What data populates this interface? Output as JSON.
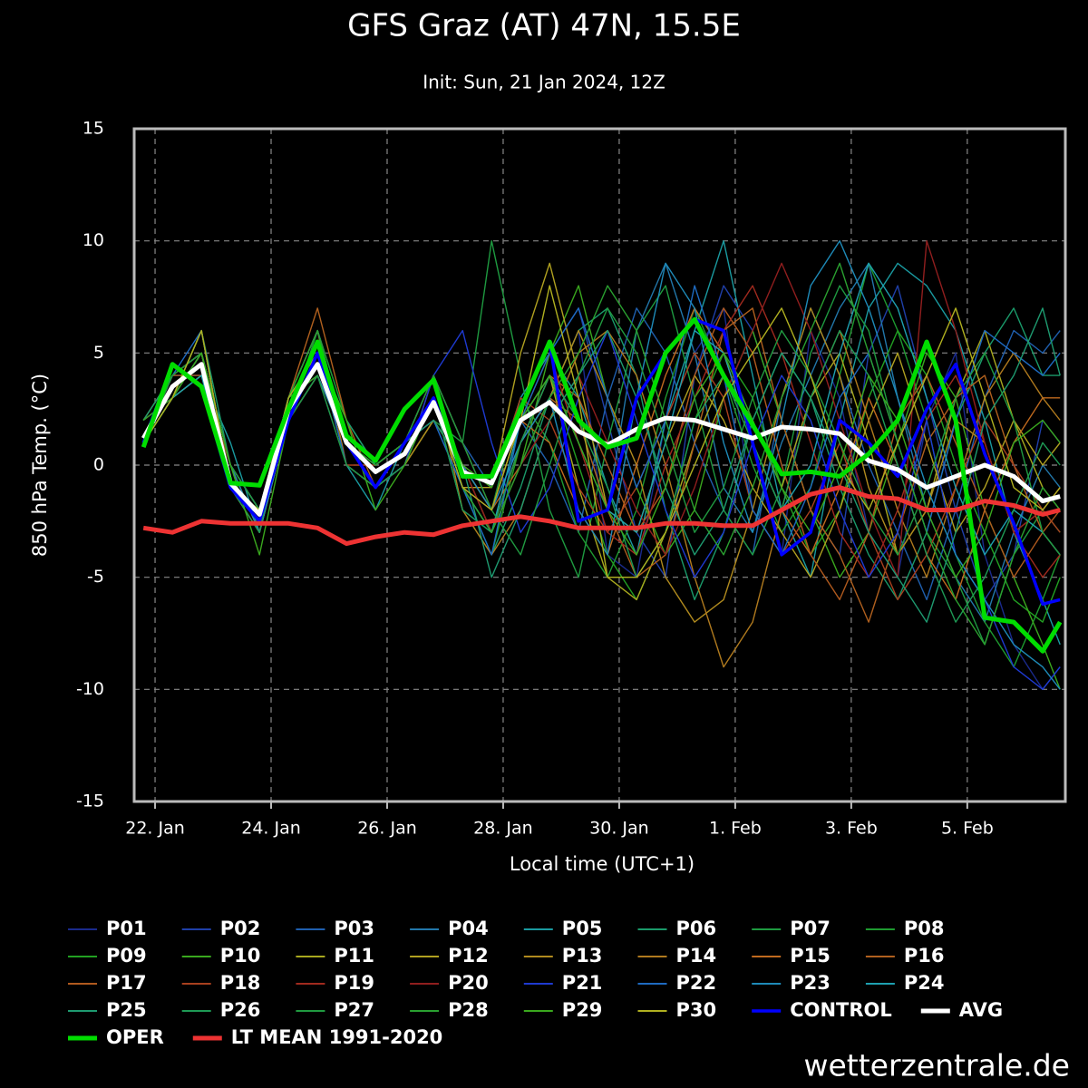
{
  "chart_data": {
    "type": "line",
    "title": "GFS Graz (AT) 47N, 15.5E",
    "subtitle": "Init: Sun, 21 Jan 2024, 12Z",
    "x_label": "Local time (UTC+1)",
    "y_label": "850 hPa Temp. (°C)",
    "watermark": "wetterzentrale.de",
    "grid": true,
    "xlim": [
      21.64,
      37.69
    ],
    "xticks": [
      {
        "value": 22,
        "label": "22. Jan"
      },
      {
        "value": 24,
        "label": "24. Jan"
      },
      {
        "value": 26,
        "label": "26. Jan"
      },
      {
        "value": 28,
        "label": "28. Jan"
      },
      {
        "value": 30,
        "label": "30. Jan"
      },
      {
        "value": 32,
        "label": "1. Feb"
      },
      {
        "value": 34,
        "label": "3. Feb"
      },
      {
        "value": 36,
        "label": "5. Feb"
      }
    ],
    "ylim": [
      -15,
      15
    ],
    "yticks": [
      -15,
      -10,
      -5,
      0,
      5,
      10,
      15
    ],
    "x": [
      21.8,
      22.3,
      22.8,
      23.3,
      23.8,
      24.3,
      24.8,
      25.3,
      25.8,
      26.3,
      26.8,
      27.3,
      27.8,
      28.3,
      28.8,
      29.3,
      29.8,
      30.3,
      30.8,
      31.3,
      31.8,
      32.3,
      32.8,
      33.3,
      33.8,
      34.3,
      34.8,
      35.3,
      35.8,
      36.3,
      36.8,
      37.3,
      37.6
    ],
    "series": [
      {
        "name": "P01",
        "color": "#1a2a8c",
        "values": [
          1,
          3,
          5,
          0,
          -2,
          3,
          5,
          1,
          -1,
          0,
          3,
          0,
          -2,
          1,
          3,
          6,
          -4,
          -5,
          2,
          5,
          7,
          -2,
          -4,
          6,
          3,
          -3,
          -5,
          2,
          5,
          -4,
          -8,
          -10,
          -9
        ]
      },
      {
        "name": "P02",
        "color": "#1f3fa8",
        "values": [
          2,
          4,
          4,
          -1,
          -3,
          2,
          4,
          0,
          -1,
          1,
          2,
          -1,
          -2,
          3,
          5,
          7,
          2,
          -3,
          -5,
          4,
          8,
          6,
          2,
          -2,
          -4,
          5,
          8,
          3,
          -2,
          -6,
          -4,
          2,
          1
        ]
      },
      {
        "name": "P03",
        "color": "#1f5fae",
        "values": [
          1,
          3,
          5,
          0,
          -2,
          2,
          6,
          2,
          0,
          1,
          4,
          1,
          -1,
          2,
          0,
          -3,
          3,
          7,
          5,
          1,
          -2,
          -4,
          3,
          7,
          4,
          0,
          -3,
          -6,
          -2,
          3,
          6,
          5,
          6
        ]
      },
      {
        "name": "P04",
        "color": "#2277aa",
        "values": [
          1,
          4,
          5,
          -1,
          -2,
          3,
          4,
          1,
          -1,
          0,
          3,
          -2,
          -3,
          1,
          4,
          2,
          -2,
          6,
          9,
          5,
          -1,
          -3,
          1,
          4,
          7,
          9,
          3,
          -2,
          -5,
          -7,
          -3,
          0,
          -1
        ]
      },
      {
        "name": "P05",
        "color": "#1a9aa0",
        "values": [
          1,
          3,
          4,
          1,
          -3,
          2,
          5,
          0,
          -2,
          1,
          2,
          0,
          -1,
          3,
          5,
          3,
          -1,
          -4,
          2,
          6,
          10,
          4,
          -2,
          -5,
          2,
          7,
          9,
          8,
          6,
          2,
          -3,
          -6,
          -8
        ]
      },
      {
        "name": "P06",
        "color": "#1a9a6a",
        "values": [
          1,
          3,
          6,
          0,
          -2,
          3,
          5,
          1,
          0,
          1,
          3,
          -1,
          -4,
          -1,
          3,
          6,
          7,
          4,
          -2,
          -6,
          -3,
          2,
          5,
          3,
          -1,
          -4,
          -6,
          -3,
          2,
          5,
          7,
          4,
          4
        ]
      },
      {
        "name": "P07",
        "color": "#1e9a40",
        "values": [
          2,
          4,
          5,
          -1,
          -3,
          3,
          5,
          1,
          -1,
          0,
          2,
          1,
          10,
          4,
          -2,
          -5,
          1,
          6,
          8,
          3,
          -2,
          -4,
          -1,
          5,
          8,
          6,
          1,
          -3,
          -5,
          -8,
          -4,
          -2,
          -3
        ]
      },
      {
        "name": "P08",
        "color": "#1e9a30",
        "values": [
          1,
          3,
          6,
          -1,
          -2,
          2,
          6,
          2,
          0,
          1,
          3,
          0,
          -2,
          3,
          1,
          -3,
          -5,
          -2,
          3,
          7,
          4,
          0,
          -3,
          -1,
          4,
          9,
          6,
          2,
          -4,
          -7,
          -9,
          -6,
          -4
        ]
      },
      {
        "name": "P09",
        "color": "#22a022",
        "values": [
          1,
          3,
          5,
          0,
          -3,
          2,
          5,
          1,
          -1,
          0,
          3,
          -2,
          -4,
          1,
          4,
          0,
          -4,
          -6,
          -3,
          2,
          5,
          3,
          -1,
          -4,
          -2,
          3,
          6,
          4,
          0,
          -3,
          -6,
          -7,
          -5
        ]
      },
      {
        "name": "P10",
        "color": "#3aa81e",
        "values": [
          2,
          4,
          5,
          -1,
          -2,
          3,
          4,
          1,
          0,
          1,
          3,
          -1,
          -3,
          0,
          5,
          8,
          3,
          -1,
          -4,
          -2,
          3,
          6,
          2,
          -2,
          -5,
          -3,
          1,
          5,
          3,
          -2,
          -5,
          -8,
          -10
        ]
      },
      {
        "name": "P11",
        "color": "#a8a81e",
        "values": [
          1,
          3,
          4,
          0,
          -2,
          2,
          5,
          0,
          -1,
          0,
          2,
          0,
          -2,
          2,
          4,
          -1,
          -5,
          -6,
          -3,
          1,
          4,
          2,
          -1,
          3,
          5,
          1,
          -4,
          -2,
          3,
          6,
          2,
          -1,
          -2
        ]
      },
      {
        "name": "P12",
        "color": "#b0a020",
        "values": [
          1,
          4,
          5,
          -1,
          -3,
          3,
          6,
          1,
          0,
          1,
          3,
          -1,
          -1,
          5,
          9,
          4,
          -2,
          -3,
          1,
          4,
          2,
          -1,
          -3,
          -5,
          -2,
          2,
          5,
          1,
          -3,
          -1,
          2,
          0,
          1
        ]
      },
      {
        "name": "P13",
        "color": "#b08a1e",
        "values": [
          1,
          3,
          5,
          0,
          -2,
          2,
          4,
          1,
          -1,
          0,
          2,
          0,
          -3,
          1,
          3,
          6,
          3,
          0,
          -5,
          -7,
          -6,
          -2,
          3,
          7,
          4,
          -1,
          -4,
          -2,
          2,
          1,
          -3,
          -2,
          -1
        ]
      },
      {
        "name": "P14",
        "color": "#b07a1e",
        "values": [
          2,
          3,
          6,
          -1,
          -2,
          3,
          6,
          0,
          -1,
          1,
          4,
          -2,
          -4,
          -2,
          2,
          5,
          6,
          4,
          0,
          -5,
          -9,
          -7,
          -2,
          3,
          6,
          2,
          -2,
          -5,
          -1,
          3,
          5,
          3,
          2
        ]
      },
      {
        "name": "P15",
        "color": "#c06a1e",
        "values": [
          1,
          4,
          5,
          0,
          -3,
          2,
          5,
          1,
          0,
          1,
          3,
          0,
          -2,
          2,
          1,
          -2,
          -4,
          0,
          4,
          7,
          5,
          1,
          -2,
          -4,
          -1,
          3,
          0,
          -4,
          -6,
          -2,
          1,
          3,
          3
        ]
      },
      {
        "name": "P16",
        "color": "#b0601e",
        "values": [
          1,
          3,
          5,
          -1,
          -2,
          3,
          7,
          2,
          -1,
          0,
          4,
          1,
          -2,
          0,
          3,
          2,
          -2,
          -5,
          -4,
          1,
          6,
          7,
          2,
          -2,
          -4,
          -7,
          -3,
          1,
          3,
          4,
          0,
          -3,
          -4
        ]
      },
      {
        "name": "P17",
        "color": "#b05a1e",
        "values": [
          2,
          4,
          4,
          0,
          -3,
          2,
          5,
          1,
          -1,
          1,
          3,
          -1,
          -3,
          1,
          4,
          3,
          0,
          -3,
          -1,
          4,
          7,
          5,
          0,
          -4,
          -6,
          -3,
          2,
          4,
          1,
          -2,
          -5,
          -3,
          -2
        ]
      },
      {
        "name": "P18",
        "color": "#a8401e",
        "values": [
          1,
          3,
          6,
          -1,
          -2,
          3,
          5,
          0,
          0,
          1,
          2,
          0,
          -1,
          3,
          2,
          -1,
          -3,
          -1,
          2,
          5,
          3,
          -2,
          -4,
          -2,
          1,
          -3,
          -6,
          -4,
          -1,
          2,
          0,
          -2,
          -3
        ]
      },
      {
        "name": "P19",
        "color": "#a02a1e",
        "values": [
          1,
          4,
          5,
          0,
          -2,
          2,
          4,
          1,
          -1,
          0,
          3,
          -1,
          -2,
          2,
          5,
          1,
          -3,
          -4,
          0,
          3,
          6,
          8,
          5,
          1,
          -3,
          -5,
          -2,
          2,
          4,
          1,
          -3,
          -5,
          -4
        ]
      },
      {
        "name": "P20",
        "color": "#901e1e",
        "values": [
          1,
          3,
          5,
          -1,
          -3,
          3,
          6,
          1,
          0,
          1,
          3,
          0,
          -3,
          0,
          2,
          4,
          1,
          -2,
          -4,
          -1,
          3,
          6,
          9,
          6,
          2,
          -2,
          -5,
          10,
          6,
          1,
          -3,
          -2,
          -1
        ]
      },
      {
        "name": "P21",
        "color": "#1e3ad0",
        "values": [
          2,
          3,
          5,
          0,
          -2,
          2,
          5,
          1,
          -1,
          0,
          4,
          6,
          1,
          -3,
          -1,
          3,
          6,
          2,
          -2,
          -5,
          -3,
          1,
          4,
          2,
          -2,
          -5,
          -3,
          2,
          -4,
          -6,
          -9,
          -10,
          -9
        ]
      },
      {
        "name": "P22",
        "color": "#1e6ac0",
        "values": [
          1,
          4,
          6,
          -1,
          -2,
          3,
          5,
          0,
          -1,
          1,
          2,
          -1,
          -4,
          2,
          5,
          7,
          3,
          -1,
          2,
          8,
          4,
          -2,
          -4,
          -1,
          3,
          5,
          1,
          -3,
          2,
          6,
          5,
          4,
          5
        ]
      },
      {
        "name": "P23",
        "color": "#1e8ab8",
        "values": [
          1,
          3,
          5,
          0,
          -3,
          2,
          4,
          1,
          0,
          1,
          3,
          0,
          -2,
          1,
          3,
          -2,
          -4,
          3,
          9,
          7,
          1,
          -3,
          2,
          8,
          10,
          7,
          3,
          -1,
          -4,
          -6,
          -8,
          -9,
          -10
        ]
      },
      {
        "name": "P24",
        "color": "#1ea0b0",
        "values": [
          1,
          3,
          4,
          -1,
          -2,
          3,
          6,
          1,
          -1,
          0,
          3,
          -1,
          -3,
          2,
          4,
          1,
          -2,
          -3,
          1,
          6,
          5,
          1,
          -2,
          0,
          5,
          9,
          7,
          3,
          -1,
          -4,
          -2,
          -3,
          -4
        ]
      },
      {
        "name": "P25",
        "color": "#1e9a70",
        "values": [
          2,
          4,
          5,
          0,
          -2,
          2,
          5,
          2,
          0,
          1,
          2,
          0,
          -5,
          -2,
          2,
          4,
          6,
          3,
          -1,
          -4,
          -2,
          2,
          5,
          3,
          0,
          -3,
          -5,
          -7,
          -3,
          2,
          4,
          7,
          4
        ]
      },
      {
        "name": "P26",
        "color": "#1e9a55",
        "values": [
          1,
          3,
          6,
          -1,
          -3,
          3,
          5,
          1,
          -1,
          0,
          3,
          -2,
          -3,
          1,
          4,
          2,
          -1,
          -5,
          -3,
          2,
          4,
          1,
          -2,
          3,
          6,
          4,
          0,
          -4,
          -7,
          -5,
          -2,
          1,
          0
        ]
      },
      {
        "name": "P27",
        "color": "#209a40",
        "values": [
          1,
          4,
          5,
          0,
          -2,
          2,
          4,
          0,
          -1,
          1,
          4,
          1,
          -2,
          -4,
          0,
          4,
          7,
          5,
          1,
          -3,
          -1,
          3,
          6,
          4,
          1,
          -2,
          -4,
          -1,
          3,
          5,
          2,
          -3,
          -4
        ]
      },
      {
        "name": "P28",
        "color": "#2aa030",
        "values": [
          1,
          3,
          5,
          -1,
          -2,
          3,
          6,
          1,
          0,
          1,
          3,
          -1,
          -3,
          0,
          3,
          5,
          8,
          6,
          2,
          -2,
          -4,
          -1,
          3,
          6,
          9,
          5,
          1,
          -3,
          -6,
          -8,
          -4,
          -1,
          -2
        ]
      },
      {
        "name": "P29",
        "color": "#3aa81e",
        "values": [
          2,
          3,
          5,
          0,
          -4,
          2,
          5,
          2,
          -2,
          0,
          3,
          0,
          -1,
          2,
          4,
          1,
          -2,
          -4,
          -1,
          3,
          5,
          2,
          -1,
          -3,
          0,
          4,
          2,
          -2,
          -5,
          -3,
          1,
          2,
          1
        ]
      },
      {
        "name": "P30",
        "color": "#b0b020",
        "values": [
          1,
          3,
          6,
          -1,
          -2,
          3,
          5,
          1,
          -1,
          1,
          3,
          -1,
          -2,
          2,
          8,
          3,
          -5,
          -5,
          -3,
          0,
          3,
          5,
          7,
          4,
          0,
          -2,
          1,
          4,
          7,
          3,
          -1,
          -2,
          -1
        ]
      },
      {
        "name": "CONTROL",
        "color": "#0000ff",
        "values": [
          1,
          4.5,
          3.5,
          -1,
          -2.5,
          2,
          5,
          1,
          -1,
          1,
          3,
          -0.5,
          -0.5,
          2.5,
          5.5,
          -2.5,
          -2,
          3,
          5,
          6.5,
          6,
          1,
          -4,
          -3,
          2,
          1,
          -0.5,
          2.5,
          4.5,
          0.5,
          -2.6,
          -6.2,
          -6
        ]
      },
      {
        "name": "AVG",
        "color": "#ffffff",
        "values": [
          1.2,
          3.5,
          4.5,
          -0.8,
          -2.2,
          2.5,
          4.5,
          1,
          -0.3,
          0.5,
          2.8,
          -0.3,
          -0.8,
          2,
          2.8,
          1.5,
          0.9,
          1.6,
          2.1,
          2,
          1.6,
          1.2,
          1.7,
          1.6,
          1.4,
          0.2,
          -0.2,
          -1,
          -0.5,
          0,
          -0.5,
          -1.6,
          -1.4
        ]
      },
      {
        "name": "OPER",
        "color": "#00dd00",
        "values": [
          0.8,
          4.5,
          3.5,
          -0.8,
          -0.9,
          2.5,
          5.5,
          1.3,
          0.2,
          2.5,
          3.8,
          -0.5,
          -0.5,
          2.5,
          5.5,
          2,
          0.8,
          1.2,
          5,
          6.5,
          4,
          1.8,
          -0.4,
          -0.3,
          -0.5,
          0.5,
          2,
          5.5,
          2,
          -6.8,
          -7,
          -8.3,
          -7
        ]
      },
      {
        "name": "LT MEAN 1991-2020",
        "color": "#ee3333",
        "values": [
          -2.8,
          -3,
          -2.5,
          -2.6,
          -2.6,
          -2.6,
          -2.8,
          -3.5,
          -3.2,
          -3,
          -3.1,
          -2.7,
          -2.5,
          -2.3,
          -2.5,
          -2.8,
          -2.8,
          -2.8,
          -2.6,
          -2.6,
          -2.7,
          -2.7,
          -2,
          -1.3,
          -1,
          -1.4,
          -1.5,
          -2,
          -2,
          -1.6,
          -1.8,
          -2.2,
          -2
        ]
      }
    ]
  }
}
